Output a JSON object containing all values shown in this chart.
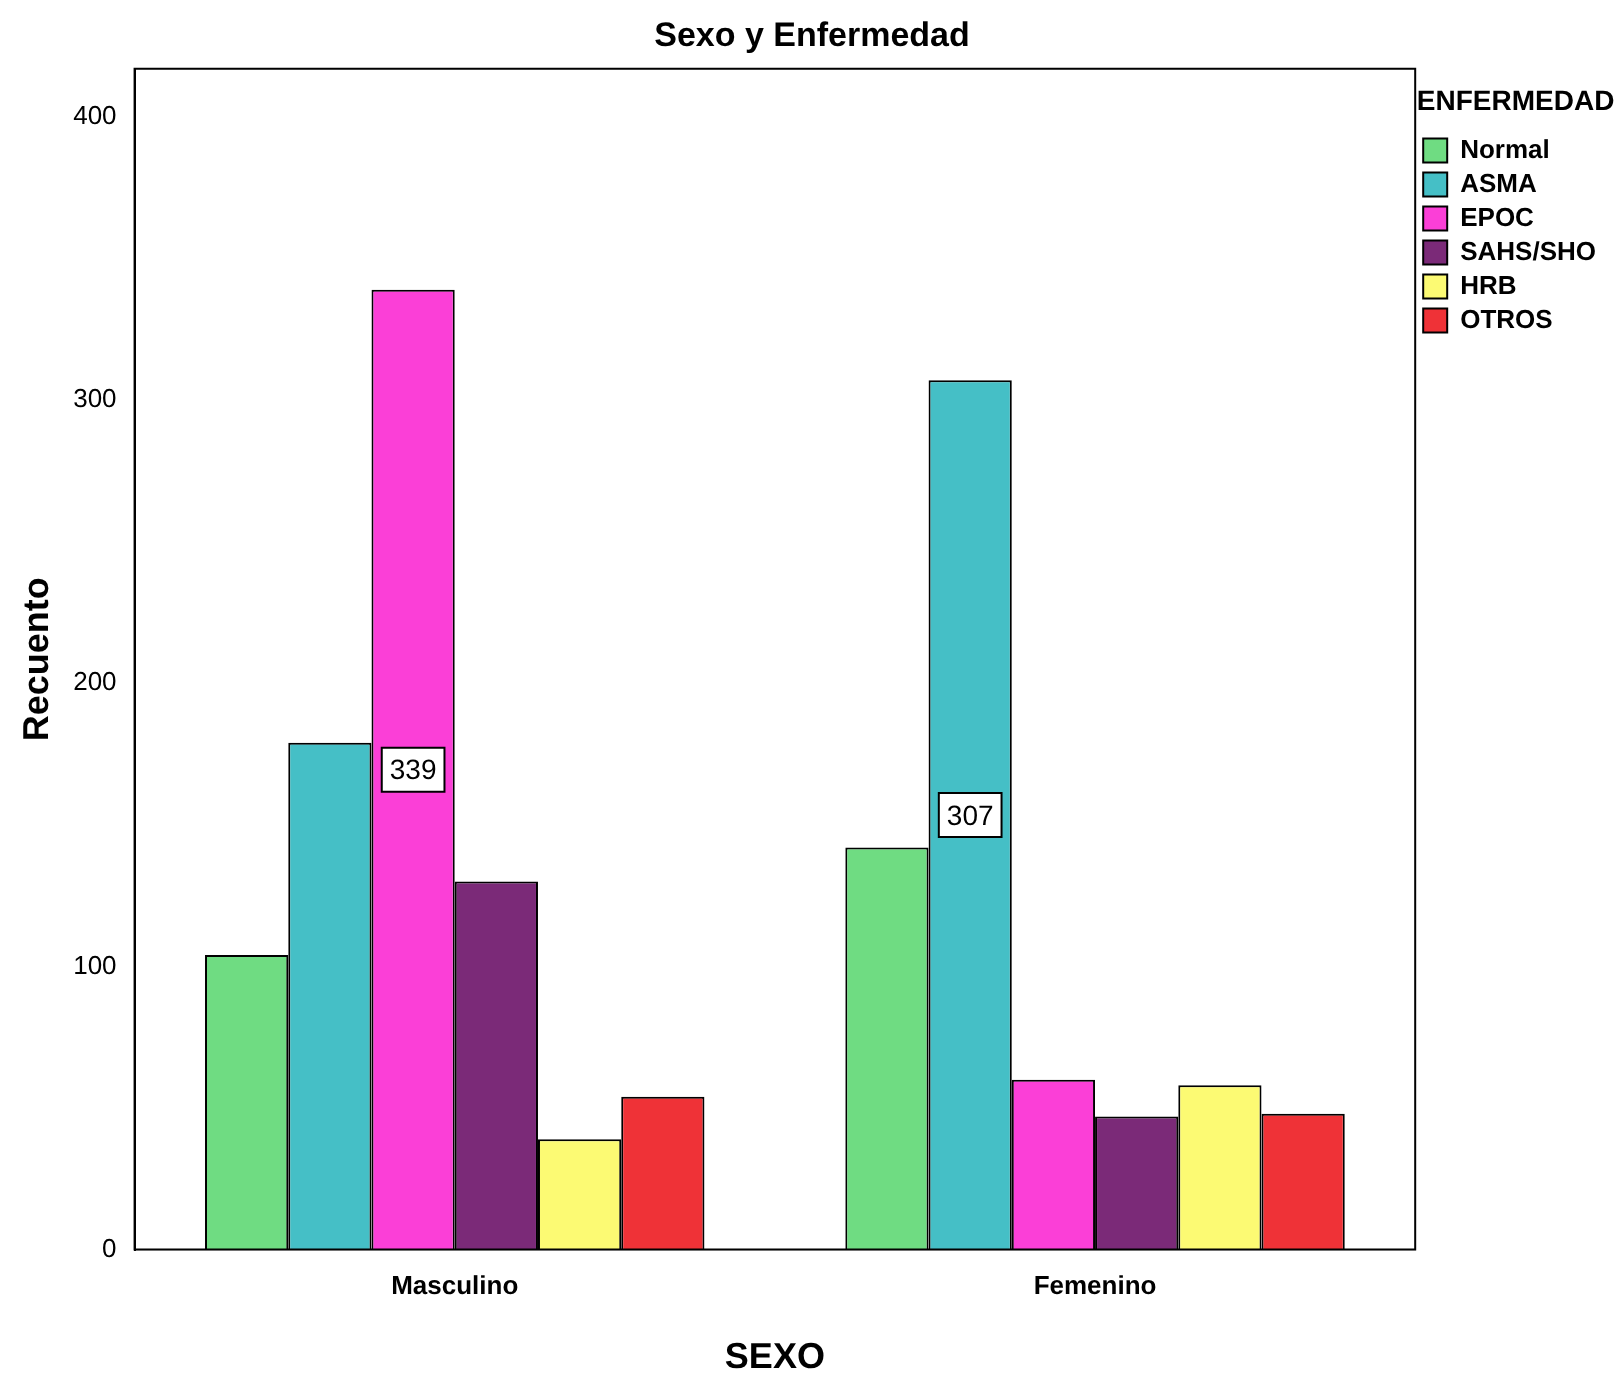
{
  "chart_data": {
    "type": "bar",
    "title": "Sexo y Enfermedad",
    "xlabel": "SEXO",
    "ylabel": "Recuento",
    "legend_title": "ENFERMEDAD",
    "legend": "top right",
    "grid": false,
    "categories": [
      "Masculino",
      "Femenino"
    ],
    "series": [
      {
        "name": "Normal",
        "color": "#6fdc82",
        "values": [
          104,
          142
        ]
      },
      {
        "name": "ASMA",
        "color": "#45bfc6",
        "values": [
          179,
          307
        ],
        "value_labels": [
          null,
          "307"
        ]
      },
      {
        "name": "EPOC",
        "color": "#fb3fd7",
        "values": [
          339,
          60
        ],
        "value_labels": [
          "339",
          null
        ]
      },
      {
        "name": "SAHS/SHO",
        "color": "#7b2a78",
        "values": [
          130,
          47
        ]
      },
      {
        "name": "HRB",
        "color": "#fcfa73",
        "values": [
          39,
          58
        ]
      },
      {
        "name": "OTROS",
        "color": "#ef3237",
        "values": [
          54,
          48
        ]
      }
    ],
    "ylim": [
      0,
      417
    ],
    "yticks": [
      0,
      100,
      200,
      300,
      400
    ]
  }
}
